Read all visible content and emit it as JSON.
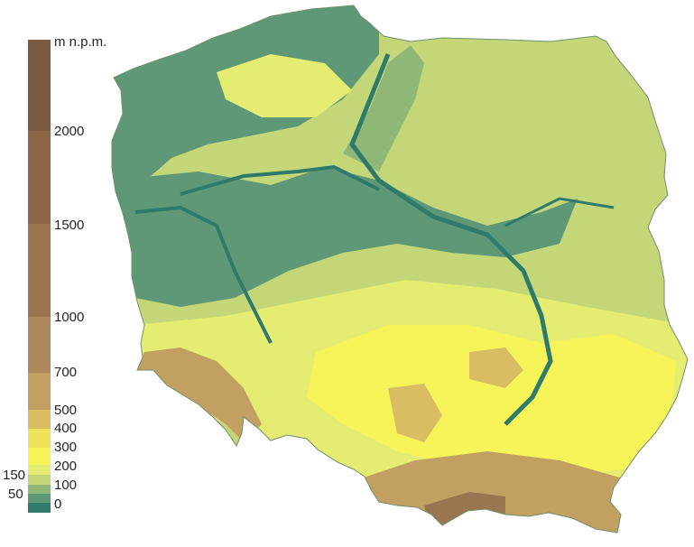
{
  "legend": {
    "unit": "m n.p.m.",
    "segments": [
      {
        "from": 2000,
        "to": 2500,
        "color": "#7c5a40"
      },
      {
        "from": 1500,
        "to": 2000,
        "color": "#8a6646"
      },
      {
        "from": 1000,
        "to": 1500,
        "color": "#9a7650"
      },
      {
        "from": 700,
        "to": 1000,
        "color": "#ab895a"
      },
      {
        "from": 500,
        "to": 700,
        "color": "#c2a062"
      },
      {
        "from": 400,
        "to": 500,
        "color": "#d9bd62"
      },
      {
        "from": 300,
        "to": 400,
        "color": "#efe15c"
      },
      {
        "from": 200,
        "to": 300,
        "color": "#f7f45a"
      },
      {
        "from": 150,
        "to": 200,
        "color": "#e4ec72"
      },
      {
        "from": 100,
        "to": 150,
        "color": "#c3d678"
      },
      {
        "from": 50,
        "to": 100,
        "color": "#8fb776"
      },
      {
        "from": 0,
        "to": 50,
        "color": "#5f9877"
      },
      {
        "from": -10,
        "to": 0,
        "color": "#2f7a6a"
      }
    ],
    "labels_right": [
      "2000",
      "1500",
      "1000",
      "700",
      "500",
      "400",
      "300",
      "200",
      "100",
      "0"
    ],
    "labels_left": [
      "150",
      "50"
    ]
  },
  "map": {
    "colors": {
      "lowland": "#5f9877",
      "low_plain": "#8fb776",
      "plain": "#c3d678",
      "upland": "#e4ec72",
      "highland": "#f7f45a",
      "mountains": "#c2a062",
      "high_mountains": "#9a7650",
      "sea_level": "#2f7a6a"
    }
  }
}
